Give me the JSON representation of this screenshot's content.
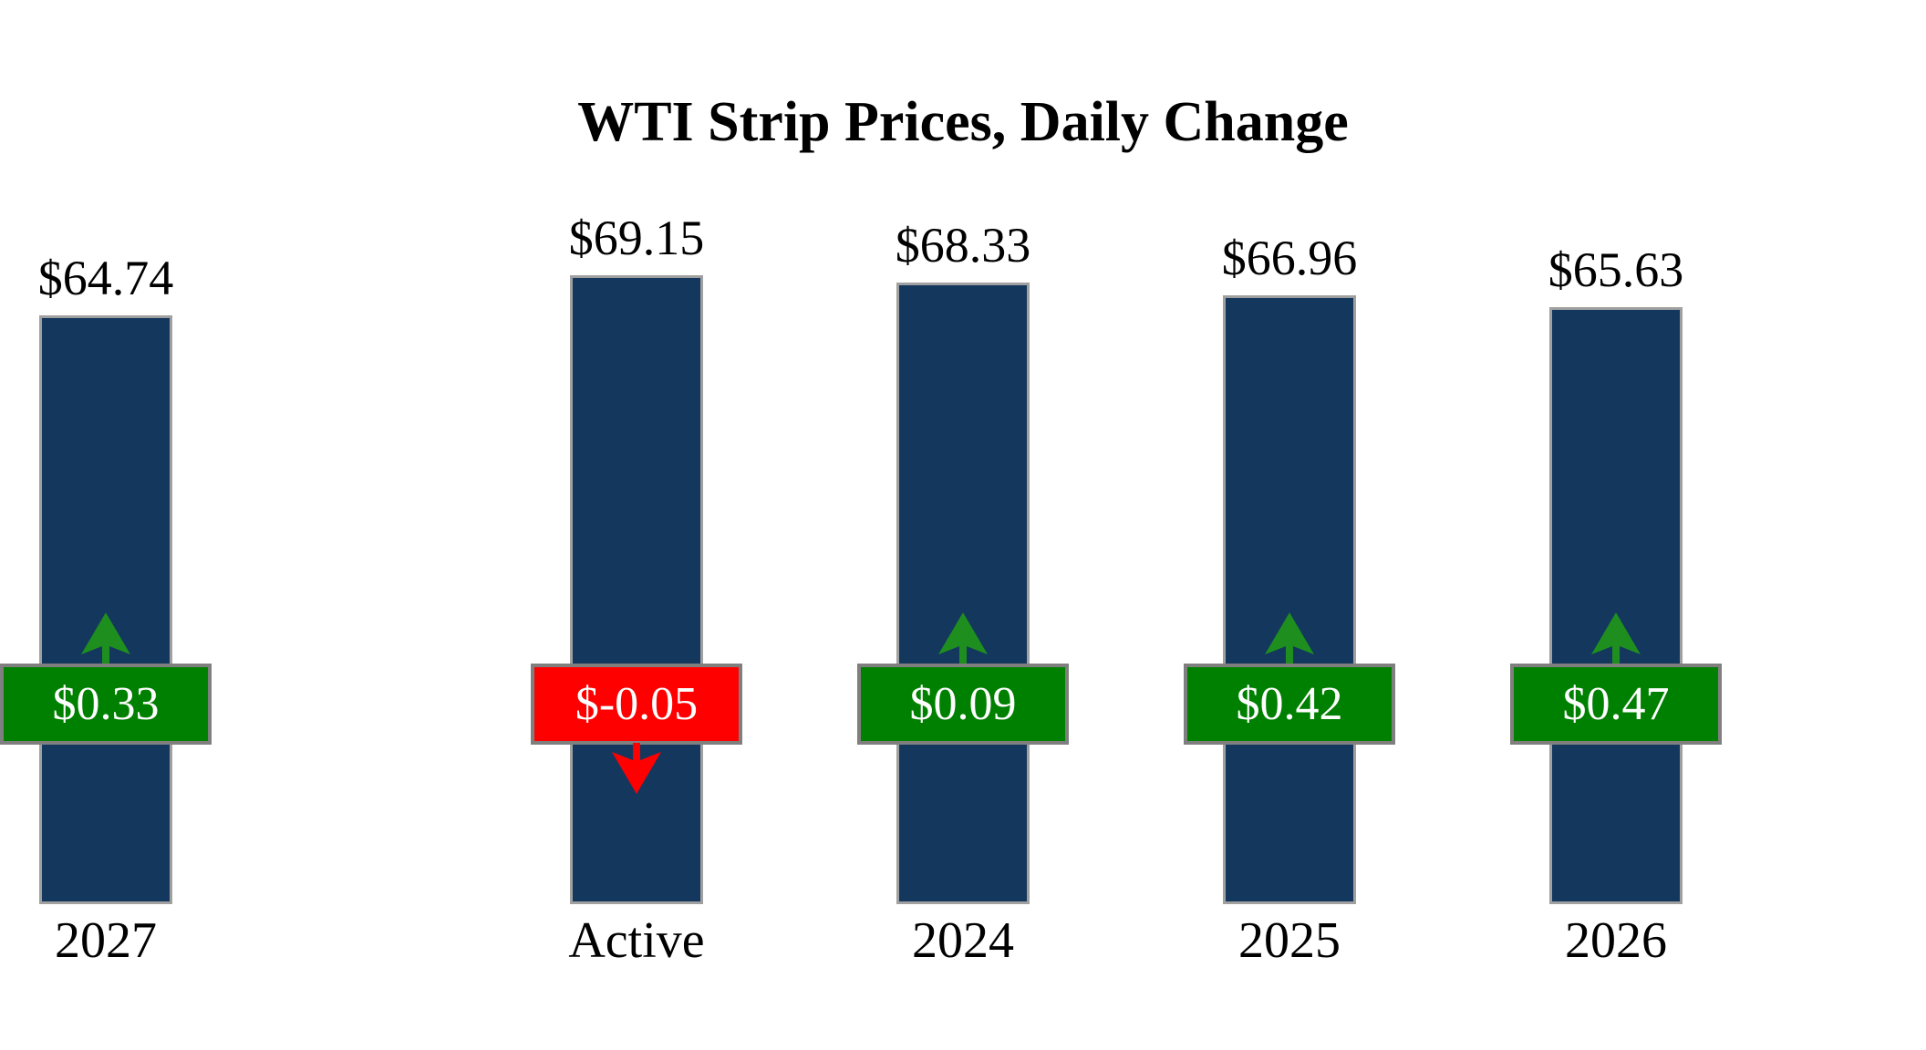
{
  "title": "WTI Strip Prices, Daily Change",
  "colors": {
    "bar": "#14375E",
    "bar_border": "#A0A0A0",
    "box_border": "#7F7F7F",
    "positive": "#008000",
    "arrow_positive": "#1E8F1E",
    "negative": "#FF0000",
    "box_text": "#FFFFFF"
  },
  "chart_data": {
    "type": "bar",
    "title": "WTI Strip Prices, Daily Change",
    "categories": [
      "Active",
      "2024",
      "2025",
      "2026",
      "2027"
    ],
    "series": [
      {
        "name": "Strip Price",
        "values": [
          69.15,
          68.33,
          66.96,
          65.63,
          64.74
        ]
      },
      {
        "name": "Daily Change",
        "values": [
          -0.05,
          0.09,
          0.42,
          0.47,
          0.33
        ]
      }
    ],
    "price_labels": [
      "$69.15",
      "$68.33",
      "$66.96",
      "$65.63",
      "$64.74"
    ],
    "change_labels": [
      "$-0.05",
      "$0.09",
      "$0.42",
      "$0.47",
      "$0.33"
    ],
    "ylim": [
      0,
      69.15
    ],
    "grid": false,
    "legend": false,
    "xlabel": "",
    "ylabel": ""
  }
}
